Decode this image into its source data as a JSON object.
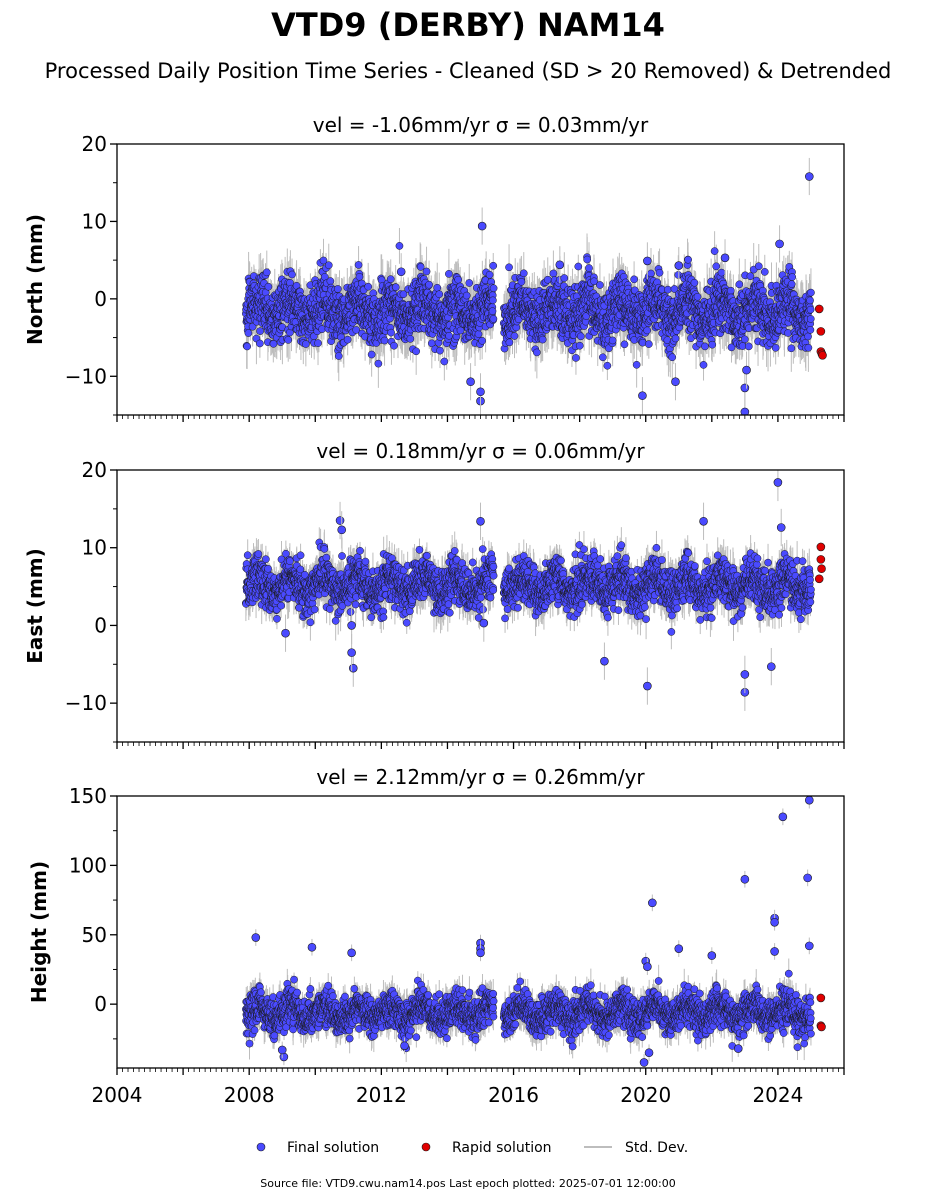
{
  "title": "VTD9 (DERBY) NAM14",
  "subtitle": "Processed Daily Position Time Series - Cleaned (SD > 20 Removed) & Detrended",
  "source_text": "Source file: VTD9.cwu.nam14.pos  Last epoch plotted: 2025-07-01 12:00:00",
  "colors": {
    "final": "#4a4aff",
    "rapid": "#e00000",
    "stddev": "#bdbdbd",
    "edge": "#1a1a1a"
  },
  "legend": {
    "final": "Final solution",
    "rapid": "Rapid solution",
    "stddev": "Std. Dev."
  },
  "chart_data": [
    {
      "type": "scatter",
      "panel": "north",
      "title": "vel = -1.06mm/yr   σ = 0.03mm/yr",
      "ylabel": "North (mm)",
      "xlim": [
        2004,
        2026
      ],
      "ylim": [
        -15,
        20
      ],
      "yticks": [
        -10,
        0,
        10,
        20
      ],
      "ytick_labels": [
        "−10",
        "0",
        "10",
        "20"
      ],
      "data_span": [
        2007.9,
        2025.0
      ],
      "gap": [
        2015.4,
        2015.7
      ],
      "noise_sd": 2.3,
      "series": [
        {
          "name": "Final solution",
          "points": [
            [
              2015.05,
              9.4
            ],
            [
              2024.95,
              15.8
            ],
            [
              2024.05,
              7.1
            ],
            [
              2022.4,
              5.3
            ],
            [
              2020.05,
              4.9
            ],
            [
              2017.4,
              4.4
            ],
            [
              2015.0,
              -13.2
            ],
            [
              2015.0,
              -12.0
            ],
            [
              2014.7,
              -10.7
            ],
            [
              2019.9,
              -12.5
            ],
            [
              2023.0,
              -14.6
            ],
            [
              2023.0,
              -11.5
            ],
            [
              2020.9,
              -10.7
            ],
            [
              2023.05,
              -9.2
            ],
            [
              2021.0,
              4.3
            ],
            [
              2012.6,
              3.5
            ]
          ]
        },
        {
          "name": "Rapid solution",
          "points": [
            [
              2025.25,
              -1.3
            ],
            [
              2025.3,
              -4.2
            ],
            [
              2025.3,
              -6.8
            ],
            [
              2025.33,
              -7.1
            ],
            [
              2025.35,
              -7.3
            ]
          ]
        }
      ]
    },
    {
      "type": "scatter",
      "panel": "east",
      "title": "vel = 0.18mm/yr   σ = 0.06mm/yr",
      "ylabel": "East (mm)",
      "xlim": [
        2004,
        2026
      ],
      "ylim": [
        -15,
        20
      ],
      "yticks": [
        -10,
        0,
        10,
        20
      ],
      "ytick_labels": [
        "−10",
        "0",
        "10",
        "20"
      ],
      "data_span": [
        2007.9,
        2025.0
      ],
      "gap": [
        2015.4,
        2015.7
      ],
      "noise_sd": 1.8,
      "series": [
        {
          "name": "Final solution",
          "points": [
            [
              2024.0,
              18.4
            ],
            [
              2024.1,
              12.6
            ],
            [
              2010.75,
              13.5
            ],
            [
              2015.0,
              13.4
            ],
            [
              2021.75,
              13.4
            ],
            [
              2010.8,
              12.3
            ],
            [
              2011.15,
              -5.5
            ],
            [
              2011.1,
              -3.5
            ],
            [
              2020.05,
              -7.8
            ],
            [
              2023.0,
              -8.6
            ],
            [
              2023.0,
              -6.3
            ],
            [
              2018.75,
              -4.6
            ],
            [
              2023.8,
              -5.3
            ],
            [
              2015.1,
              0.3
            ],
            [
              2011.1,
              0.0
            ],
            [
              2009.1,
              -1.0
            ]
          ]
        },
        {
          "name": "Rapid solution",
          "points": [
            [
              2025.25,
              6.0
            ],
            [
              2025.3,
              10.1
            ],
            [
              2025.3,
              8.5
            ],
            [
              2025.32,
              7.3
            ]
          ]
        }
      ]
    },
    {
      "type": "scatter",
      "panel": "height",
      "title": "vel = 2.12mm/yr   σ = 0.26mm/yr",
      "ylabel": "Height (mm)",
      "xlim": [
        2004,
        2026
      ],
      "ylim": [
        -46,
        150
      ],
      "yticks": [
        0,
        50,
        100,
        150
      ],
      "ytick_labels": [
        "0",
        "50",
        "100",
        "150"
      ],
      "data_span": [
        2007.9,
        2025.0
      ],
      "gap": [
        2015.4,
        2015.7
      ],
      "noise_sd": 8.0,
      "series": [
        {
          "name": "Final solution",
          "points": [
            [
              2024.95,
              147
            ],
            [
              2024.15,
              135
            ],
            [
              2024.9,
              91
            ],
            [
              2023.0,
              90
            ],
            [
              2023.9,
              62
            ],
            [
              2023.9,
              59
            ],
            [
              2020.2,
              73
            ],
            [
              2008.2,
              48
            ],
            [
              2009.9,
              41
            ],
            [
              2015.0,
              44
            ],
            [
              2015.0,
              40
            ],
            [
              2015.0,
              37
            ],
            [
              2011.1,
              37
            ],
            [
              2021.0,
              40
            ],
            [
              2022.0,
              35
            ],
            [
              2024.95,
              42
            ],
            [
              2023.9,
              38
            ],
            [
              2019.95,
              -42
            ],
            [
              2020.0,
              31
            ],
            [
              2020.05,
              27
            ],
            [
              2009.05,
              -38
            ],
            [
              2009.0,
              -33
            ],
            [
              2012.7,
              -30
            ],
            [
              2020.1,
              -35
            ],
            [
              2022.8,
              -32
            ]
          ]
        },
        {
          "name": "Rapid solution",
          "points": [
            [
              2025.3,
              4.5
            ],
            [
              2025.3,
              -15.5
            ],
            [
              2025.32,
              -16.4
            ]
          ]
        }
      ]
    }
  ],
  "xticks": [
    2004,
    2008,
    2012,
    2016,
    2020,
    2024
  ],
  "xtick_labels": [
    "2004",
    "2008",
    "2012",
    "2016",
    "2020",
    "2024"
  ]
}
